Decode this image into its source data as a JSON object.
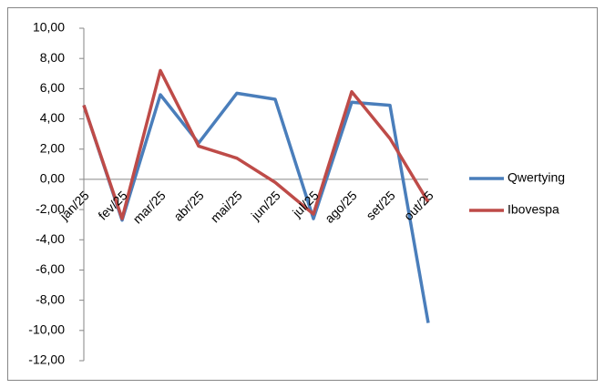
{
  "chart_data": {
    "type": "line",
    "categories": [
      "jan/25",
      "fev/25",
      "mar/25",
      "abr/25",
      "mai/25",
      "jun/25",
      "jul/25",
      "ago/25",
      "set/25",
      "out/25"
    ],
    "series": [
      {
        "name": "Qwertying",
        "color": "#4a7ebb",
        "values": [
          4.9,
          -2.7,
          5.6,
          2.4,
          5.7,
          5.3,
          -2.6,
          5.1,
          4.9,
          -9.5
        ]
      },
      {
        "name": "Ibovespa",
        "color": "#be4b48",
        "values": [
          4.9,
          -2.6,
          7.2,
          2.2,
          1.4,
          -0.2,
          -2.3,
          5.8,
          2.7,
          -1.5
        ]
      }
    ],
    "ylim": [
      -12,
      10
    ],
    "yticks": [
      {
        "value": -12,
        "label": "-12,00"
      },
      {
        "value": -10,
        "label": "-10,00"
      },
      {
        "value": -8,
        "label": "-8,00"
      },
      {
        "value": -6,
        "label": "-6,00"
      },
      {
        "value": -4,
        "label": "-4,00"
      },
      {
        "value": -2,
        "label": "-2,00"
      },
      {
        "value": 0,
        "label": "0,00"
      },
      {
        "value": 2,
        "label": "2,00"
      },
      {
        "value": 4,
        "label": "4,00"
      },
      {
        "value": 6,
        "label": "6,00"
      },
      {
        "value": 8,
        "label": "8,00"
      },
      {
        "value": 10,
        "label": "10,00"
      }
    ],
    "negative_tick_color": "#cc0000",
    "grid": false,
    "legend": "right"
  }
}
